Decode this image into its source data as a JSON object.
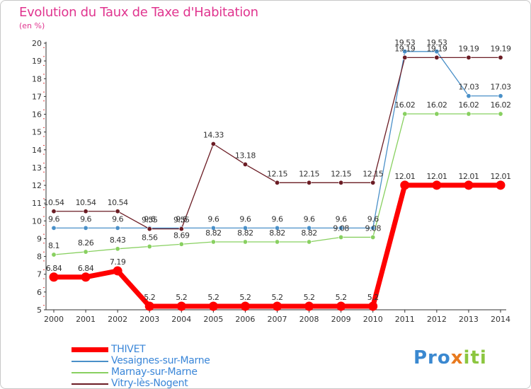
{
  "header": {
    "title": "Evolution du Taux de Taxe d'Habitation",
    "unit": "(en %)"
  },
  "brand": {
    "logo_text": "Proxiti",
    "colors": [
      "#3a88d0",
      "#e87a1e",
      "#8cc63f"
    ]
  },
  "chart_data": {
    "type": "line",
    "x": [
      2000,
      2001,
      2002,
      2003,
      2004,
      2005,
      2006,
      2007,
      2008,
      2009,
      2010,
      2011,
      2012,
      2013,
      2014
    ],
    "ylim": [
      5,
      20
    ],
    "yticks": [
      5,
      6,
      7,
      8,
      9,
      10,
      11,
      12,
      13,
      14,
      15,
      16,
      17,
      18,
      19,
      20
    ],
    "grid": false,
    "legend_position": "bottom-left",
    "series": [
      {
        "name": "THIVET",
        "color": "#ff0000",
        "values": [
          6.84,
          6.84,
          7.19,
          5.2,
          5.2,
          5.2,
          5.2,
          5.2,
          5.2,
          5.2,
          5.2,
          12.01,
          12.01,
          12.01,
          12.01
        ],
        "labels": [
          "6.84",
          "6.84",
          "7.19",
          "5.2",
          "5.2",
          "5.2",
          "5.2",
          "5.2",
          "5.2",
          "5.2",
          "5.2",
          "12.01",
          "12.01",
          "12.01",
          "12.01"
        ]
      },
      {
        "name": "Vesaignes-sur-Marne",
        "color": "#4a90c8",
        "values": [
          9.6,
          9.6,
          9.6,
          9.6,
          9.6,
          9.6,
          9.6,
          9.6,
          9.6,
          9.6,
          9.6,
          19.53,
          19.53,
          17.03,
          17.03
        ],
        "labels": [
          "9.6",
          "9.6",
          "9.6",
          "9.6",
          "9.6",
          "9.6",
          "9.6",
          "9.6",
          "9.6",
          "9.6",
          "9.6",
          "19.53",
          "19.53",
          "17.03",
          "17.03"
        ]
      },
      {
        "name": "Marnay-sur-Marne",
        "color": "#88d060",
        "values": [
          8.1,
          8.26,
          8.43,
          8.56,
          8.69,
          8.82,
          8.82,
          8.82,
          8.82,
          9.08,
          9.08,
          16.02,
          16.02,
          16.02,
          16.02
        ],
        "labels": [
          "8.1",
          "8.26",
          "8.43",
          "8.56",
          "8.69",
          "8.82",
          "8.82",
          "8.82",
          "8.82",
          "9.08",
          "9.08",
          "16.02",
          "16.02",
          "16.02",
          "16.02"
        ]
      },
      {
        "name": "Vitry-lès-Nogent",
        "color": "#6b1c24",
        "values": [
          10.54,
          10.54,
          10.54,
          9.55,
          9.55,
          14.33,
          13.18,
          12.15,
          12.15,
          12.15,
          12.15,
          19.19,
          19.19,
          19.19,
          19.19
        ],
        "labels": [
          "10.54",
          "10.54",
          "10.54",
          "9.55",
          "9.55",
          "14.33",
          "13.18",
          "12.15",
          "12.15",
          "12.15",
          "12.15",
          "19.19",
          "19.19",
          "19.19",
          "19.19"
        ]
      }
    ]
  }
}
